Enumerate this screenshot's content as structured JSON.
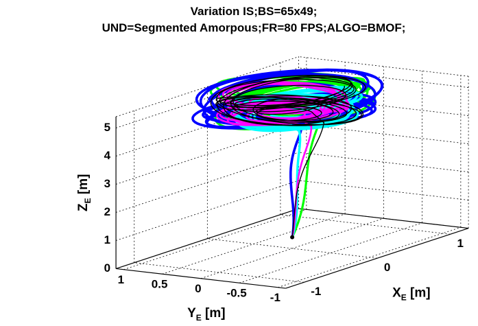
{
  "chart_data": {
    "type": "line",
    "title_lines": [
      "Variation IS;BS=65x49;",
      "UND=Segmented Amorpous;FR=80 FPS;ALGO=BMOF;"
    ],
    "axes": {
      "x": {
        "label": "X",
        "sub": "E",
        "unit": " [m]",
        "ticks": [
          -1,
          0,
          1
        ],
        "tick_labels": [
          "-1",
          "0",
          "1"
        ],
        "lim": [
          -1.2,
          1.2
        ]
      },
      "y": {
        "label": "Y",
        "sub": "E",
        "unit": " [m]",
        "ticks": [
          1,
          0.5,
          0,
          -0.5,
          -1
        ],
        "tick_labels": [
          "1",
          "0.5",
          "0",
          "-0.5",
          "-1"
        ],
        "lim": [
          1.05,
          -1.05
        ]
      },
      "z": {
        "label": "Z",
        "sub": "E",
        "unit": " [m]",
        "ticks": [
          0,
          1,
          2,
          3,
          4,
          5
        ],
        "tick_labels": [
          "0",
          "1",
          "2",
          "3",
          "4",
          "5"
        ],
        "lim": [
          0,
          5.4
        ]
      }
    },
    "grid": true,
    "series": [
      {
        "color": "#00ff00",
        "width": 3.2,
        "center": [
          0.15,
          0.15
        ],
        "amp": [
          0.78,
          0.82
        ],
        "turns": 14,
        "phase": 0.8,
        "zlo": 4.75,
        "zhi": 5.7,
        "descent": [
          0.3,
          0.0
        ]
      },
      {
        "color": "#0000ff",
        "width": 3.6,
        "center": [
          0.0,
          0.05
        ],
        "amp": [
          0.9,
          0.95
        ],
        "turns": 14,
        "phase": 2.1,
        "zlo": 4.7,
        "zhi": 5.55,
        "descent": [
          0.12,
          0.0
        ]
      },
      {
        "color": "#00ffff",
        "width": 3.4,
        "center": [
          0.05,
          0.0
        ],
        "amp": [
          0.6,
          0.7
        ],
        "turns": 12,
        "phase": 3.3,
        "zlo": 4.65,
        "zhi": 5.35,
        "descent": [
          0.22,
          0.0
        ]
      },
      {
        "color": "#ff00ff",
        "width": 2.6,
        "center": [
          0.0,
          0.1
        ],
        "amp": [
          0.55,
          0.75
        ],
        "turns": 12,
        "phase": 4.5,
        "zlo": 4.7,
        "zhi": 5.45,
        "descent": [
          0.18,
          0.0
        ]
      },
      {
        "color": "#000000",
        "width": 1.4,
        "center": [
          0.05,
          0.1
        ],
        "amp": [
          0.6,
          0.85
        ],
        "turns": 16,
        "phase": 5.4,
        "zlo": 4.7,
        "zhi": 5.6,
        "descent": [
          0.15,
          0.0
        ]
      }
    ],
    "start_point": {
      "x": 0,
      "y": 0,
      "z": 0.4,
      "color": "#000000"
    }
  }
}
